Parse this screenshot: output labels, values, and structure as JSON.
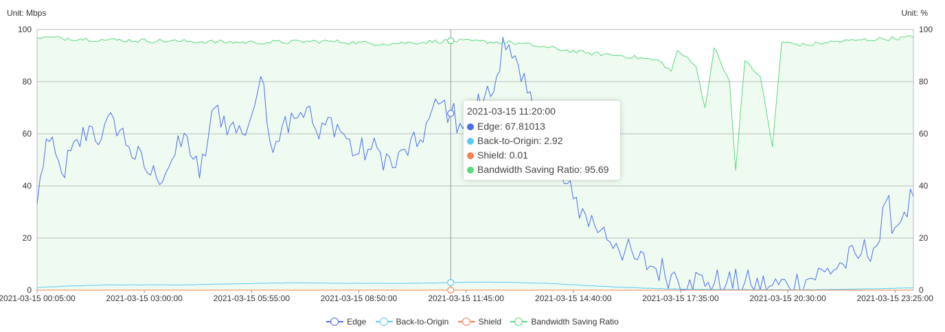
{
  "chart_data": {
    "type": "line",
    "left_axis_unit": "Unit: Mbps",
    "right_axis_unit": "Unit: %",
    "ylim_left": [
      0,
      100
    ],
    "ylim_right": [
      0,
      100
    ],
    "y_ticks_left": [
      "0",
      "20",
      "40",
      "60",
      "80",
      "100"
    ],
    "y_ticks_right": [
      "0",
      "20",
      "40",
      "60",
      "80",
      "100"
    ],
    "x_tick_labels": [
      "2021-03-15 00:05:00",
      "2021-03-15 03:00:00",
      "2021-03-15 05:55:00",
      "2021-03-15 08:50:00",
      "2021-03-15 11:45:00",
      "2021-03-15 14:40:00",
      "2021-03-15 17:35:00",
      "2021-03-15 20:30:00",
      "2021-03-15 23:25:00"
    ],
    "x_start": "2021-03-15 00:05:00",
    "x_end": "2021-03-15 23:55:00",
    "x_interval_minutes": 5,
    "grid": true,
    "legend_position": "bottom",
    "series": [
      {
        "name": "Edge",
        "axis": "left",
        "color": "#4a6cf0",
        "fill": "#dfecf4",
        "area": true,
        "keypoints": [
          [
            "00:05",
            33
          ],
          [
            "00:20",
            58
          ],
          [
            "00:45",
            45
          ],
          [
            "01:30",
            63
          ],
          [
            "01:50",
            58
          ],
          [
            "02:10",
            66
          ],
          [
            "02:35",
            55
          ],
          [
            "03:00",
            47
          ],
          [
            "03:20",
            43
          ],
          [
            "03:45",
            50
          ],
          [
            "04:10",
            59
          ],
          [
            "04:30",
            43
          ],
          [
            "04:55",
            70
          ],
          [
            "05:20",
            63
          ],
          [
            "05:40",
            60
          ],
          [
            "05:55",
            67
          ],
          [
            "06:10",
            82
          ],
          [
            "06:25",
            57
          ],
          [
            "06:45",
            63
          ],
          [
            "07:00",
            68
          ],
          [
            "07:25",
            70
          ],
          [
            "07:45",
            58
          ],
          [
            "08:05",
            66
          ],
          [
            "08:25",
            60
          ],
          [
            "08:45",
            52
          ],
          [
            "09:05",
            54
          ],
          [
            "09:25",
            53
          ],
          [
            "09:50",
            47
          ],
          [
            "10:05",
            54
          ],
          [
            "10:25",
            55
          ],
          [
            "10:45",
            66
          ],
          [
            "11:05",
            72
          ],
          [
            "11:20",
            67.81013
          ],
          [
            "11:35",
            64
          ],
          [
            "11:55",
            68
          ],
          [
            "12:15",
            74
          ],
          [
            "12:30",
            76
          ],
          [
            "12:45",
            97
          ],
          [
            "13:00",
            89
          ],
          [
            "13:15",
            80
          ],
          [
            "13:35",
            69
          ],
          [
            "13:55",
            55
          ],
          [
            "14:15",
            45
          ],
          [
            "14:40",
            35
          ],
          [
            "15:00",
            29
          ],
          [
            "15:25",
            23
          ],
          [
            "15:50",
            18
          ],
          [
            "16:20",
            12
          ],
          [
            "16:50",
            9
          ],
          [
            "17:20",
            6
          ],
          [
            "17:50",
            4
          ],
          [
            "18:20",
            3
          ],
          [
            "18:50",
            2.5
          ],
          [
            "19:30",
            2
          ],
          [
            "20:00",
            1.5
          ],
          [
            "20:30",
            2
          ],
          [
            "21:00",
            4
          ],
          [
            "21:30",
            7
          ],
          [
            "22:00",
            10
          ],
          [
            "22:30",
            14
          ],
          [
            "23:00",
            19
          ],
          [
            "23:10",
            34
          ],
          [
            "23:25",
            24
          ],
          [
            "23:40",
            30
          ],
          [
            "23:55",
            36
          ]
        ]
      },
      {
        "name": "Back-to-Origin",
        "axis": "left",
        "color": "#5bc8f5",
        "area": false,
        "keypoints": [
          [
            "00:05",
            1
          ],
          [
            "01:00",
            1.6
          ],
          [
            "02:00",
            2
          ],
          [
            "03:00",
            2
          ],
          [
            "04:00",
            2
          ],
          [
            "05:00",
            2.3
          ],
          [
            "06:00",
            2.6
          ],
          [
            "07:00",
            2.8
          ],
          [
            "08:00",
            2.7
          ],
          [
            "09:00",
            2.6
          ],
          [
            "10:00",
            2.6
          ],
          [
            "11:00",
            2.8
          ],
          [
            "11:20",
            2.92
          ],
          [
            "12:00",
            3.1
          ],
          [
            "13:00",
            3
          ],
          [
            "14:00",
            2.6
          ],
          [
            "15:00",
            1.8
          ],
          [
            "16:00",
            1.1
          ],
          [
            "17:00",
            0.6
          ],
          [
            "18:00",
            0.3
          ],
          [
            "19:00",
            0.2
          ],
          [
            "20:00",
            0.15
          ],
          [
            "21:00",
            0.15
          ],
          [
            "22:00",
            0.3
          ],
          [
            "23:00",
            0.6
          ],
          [
            "23:55",
            0.9
          ]
        ]
      },
      {
        "name": "Shield",
        "axis": "left",
        "color": "#f5814e",
        "area": false,
        "keypoints": [
          [
            "00:05",
            0
          ],
          [
            "11:20",
            0.01
          ],
          [
            "23:55",
            0
          ]
        ]
      },
      {
        "name": "Bandwidth Saving Ratio",
        "axis": "right",
        "color": "#57d97c",
        "fill": "#effbf1",
        "area": true,
        "keypoints": [
          [
            "00:05",
            97
          ],
          [
            "02:00",
            96
          ],
          [
            "04:00",
            95.5
          ],
          [
            "06:00",
            95
          ],
          [
            "08:00",
            95.5
          ],
          [
            "09:30",
            94.5
          ],
          [
            "11:20",
            95.69
          ],
          [
            "13:00",
            95
          ],
          [
            "14:00",
            93
          ],
          [
            "15:00",
            91
          ],
          [
            "16:00",
            90
          ],
          [
            "17:00",
            88
          ],
          [
            "17:20",
            84
          ],
          [
            "17:30",
            92
          ],
          [
            "18:00",
            86
          ],
          [
            "18:15",
            70
          ],
          [
            "18:30",
            93
          ],
          [
            "18:55",
            80
          ],
          [
            "19:05",
            46
          ],
          [
            "19:20",
            88
          ],
          [
            "19:45",
            82
          ],
          [
            "20:05",
            55
          ],
          [
            "20:20",
            95
          ],
          [
            "21:00",
            94
          ],
          [
            "21:30",
            95
          ],
          [
            "22:30",
            96
          ],
          [
            "23:55",
            97
          ]
        ]
      }
    ],
    "tooltip": {
      "time": "2021-03-15 11:20:00",
      "rows": [
        {
          "label": "Edge: 67.81013",
          "color": "#4a6cf0"
        },
        {
          "label": "Back-to-Origin: 2.92",
          "color": "#5bc8f5"
        },
        {
          "label": "Shield: 0.01",
          "color": "#f5814e"
        },
        {
          "label": "Bandwidth Saving Ratio: 95.69",
          "color": "#57d97c"
        }
      ]
    },
    "cursor_time": "11:20"
  }
}
